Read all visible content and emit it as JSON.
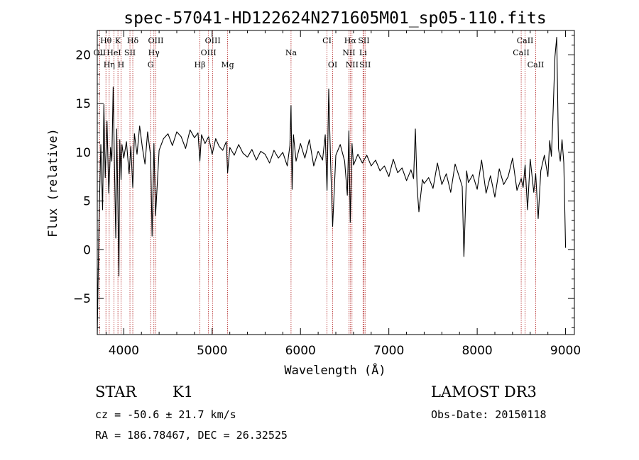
{
  "chart_data": {
    "type": "line",
    "title": "spec-57041-HD122624N271605M01_sp05-110.fits",
    "xlabel": "Wavelength (Å)",
    "ylabel": "Flux (relative)",
    "xlim": [
      3700,
      9100
    ],
    "ylim": [
      -8.7,
      22.5
    ],
    "xticks": [
      4000,
      5000,
      6000,
      7000,
      8000,
      9000
    ],
    "yticks": [
      -5,
      0,
      5,
      10,
      15,
      20
    ],
    "grid": false,
    "legend": "none",
    "spectral_lines": [
      {
        "label": "Hθ",
        "wavelength": 3798,
        "row": 0
      },
      {
        "label": "K",
        "wavelength": 3934,
        "row": 0
      },
      {
        "label": "Hδ",
        "wavelength": 4102,
        "row": 0
      },
      {
        "label": "OIII",
        "wavelength": 4363,
        "row": 0
      },
      {
        "label": "OIII",
        "wavelength": 5007,
        "row": 0
      },
      {
        "label": "CI",
        "wavelength": 6300,
        "row": 0
      },
      {
        "label": "Hα",
        "wavelength": 6563,
        "row": 0
      },
      {
        "label": "SII",
        "wavelength": 6717,
        "row": 0
      },
      {
        "label": "CaII",
        "wavelength": 8542,
        "row": 0
      },
      {
        "label": "OII",
        "wavelength": 3727,
        "row": 1
      },
      {
        "label": "HeI",
        "wavelength": 3889,
        "row": 1
      },
      {
        "label": "SII",
        "wavelength": 4070,
        "row": 1
      },
      {
        "label": "Hγ",
        "wavelength": 4341,
        "row": 1
      },
      {
        "label": "OIII",
        "wavelength": 4959,
        "row": 1
      },
      {
        "label": "Na",
        "wavelength": 5893,
        "row": 1
      },
      {
        "label": "NII",
        "wavelength": 6548,
        "row": 1
      },
      {
        "label": "Li",
        "wavelength": 6708,
        "row": 1
      },
      {
        "label": "CaII",
        "wavelength": 8498,
        "row": 1
      },
      {
        "label": "Hη",
        "wavelength": 3835,
        "row": 2
      },
      {
        "label": "H",
        "wavelength": 3969,
        "row": 2
      },
      {
        "label": "G",
        "wavelength": 4304,
        "row": 2
      },
      {
        "label": "Hβ",
        "wavelength": 4861,
        "row": 2
      },
      {
        "label": "Mg",
        "wavelength": 5175,
        "row": 2
      },
      {
        "label": "OI",
        "wavelength": 6364,
        "row": 2
      },
      {
        "label": "NII",
        "wavelength": 6583,
        "row": 2
      },
      {
        "label": "SII",
        "wavelength": 6731,
        "row": 2
      },
      {
        "label": "CaII",
        "wavelength": 8662,
        "row": 2
      }
    ],
    "series": [
      {
        "x": [
          3700,
          3720,
          3740,
          3760,
          3775,
          3790,
          3810,
          3830,
          3850,
          3865,
          3880,
          3895,
          3910,
          3920,
          3934,
          3945,
          3955,
          3969,
          3980,
          4000,
          4030,
          4060,
          4080,
          4102,
          4120,
          4150,
          4180,
          4210,
          4240,
          4270,
          4304,
          4320,
          4341,
          4360,
          4400,
          4450,
          4500,
          4550,
          4600,
          4650,
          4700,
          4750,
          4800,
          4840,
          4861,
          4880,
          4920,
          4960,
          5000,
          5040,
          5080,
          5120,
          5160,
          5175,
          5200,
          5250,
          5300,
          5350,
          5400,
          5450,
          5500,
          5550,
          5600,
          5650,
          5700,
          5750,
          5800,
          5850,
          5880,
          5893,
          5905,
          5920,
          5950,
          6000,
          6050,
          6100,
          6150,
          6200,
          6250,
          6280,
          6300,
          6320,
          6340,
          6364,
          6400,
          6450,
          6500,
          6530,
          6548,
          6563,
          6583,
          6600,
          6650,
          6700,
          6750,
          6800,
          6850,
          6900,
          6950,
          7000,
          7050,
          7100,
          7150,
          7200,
          7250,
          7280,
          7300,
          7320,
          7340,
          7380,
          7400,
          7450,
          7500,
          7550,
          7600,
          7650,
          7700,
          7750,
          7800,
          7830,
          7850,
          7880,
          7900,
          7950,
          8000,
          8050,
          8100,
          8150,
          8200,
          8250,
          8300,
          8350,
          8400,
          8450,
          8498,
          8520,
          8542,
          8570,
          8600,
          8640,
          8662,
          8690,
          8720,
          8760,
          8800,
          8820,
          8840,
          8860,
          8880,
          8900,
          8920,
          8940,
          8960,
          8980,
          9000
        ],
        "values": [
          -8.7,
          3.2,
          10.8,
          4.1,
          14.9,
          7.4,
          13.2,
          5.8,
          10.5,
          9.1,
          16.7,
          8.3,
          1.2,
          12.4,
          4.5,
          -2.7,
          11.3,
          7.2,
          10.8,
          9.4,
          11.1,
          7.8,
          10.6,
          6.4,
          11.9,
          9.8,
          12.7,
          10.5,
          8.8,
          12.1,
          9.6,
          1.4,
          10.9,
          3.5,
          10.2,
          11.4,
          11.9,
          10.7,
          12.1,
          11.6,
          10.4,
          12.3,
          11.5,
          12.0,
          9.1,
          11.8,
          10.9,
          11.6,
          9.8,
          11.4,
          10.6,
          10.2,
          11.1,
          7.9,
          10.5,
          9.7,
          10.8,
          9.9,
          9.5,
          10.3,
          9.2,
          10.1,
          9.8,
          8.9,
          10.2,
          9.4,
          10.0,
          8.6,
          10.7,
          14.8,
          6.2,
          11.8,
          9.1,
          10.9,
          9.4,
          11.3,
          8.6,
          10.1,
          9.2,
          11.8,
          6.1,
          16.5,
          9.3,
          2.4,
          9.7,
          10.8,
          9.1,
          5.6,
          12.2,
          2.8,
          10.9,
          8.7,
          9.8,
          8.9,
          9.7,
          8.6,
          9.2,
          8.1,
          8.6,
          7.5,
          9.3,
          7.9,
          8.4,
          7.1,
          8.2,
          7.3,
          12.4,
          6.4,
          3.9,
          7.2,
          6.8,
          7.4,
          6.3,
          8.9,
          6.7,
          7.8,
          5.9,
          8.8,
          7.4,
          6.5,
          -0.7,
          8.1,
          6.9,
          7.7,
          6.2,
          9.2,
          5.8,
          7.6,
          5.4,
          8.3,
          6.7,
          7.5,
          9.4,
          6.1,
          7.3,
          6.4,
          8.7,
          4.1,
          9.3,
          5.9,
          7.8,
          3.2,
          8.1,
          9.7,
          7.5,
          11.2,
          9.6,
          14.3,
          19.8,
          21.8,
          10.4,
          9.1,
          11.3,
          8.9,
          0.2
        ]
      }
    ]
  },
  "info": {
    "object_class": "STAR",
    "subclass": "K1",
    "survey": "LAMOST DR3",
    "cz": "cz = -50.6 ± 21.7 km/s",
    "obs_date": "Obs-Date: 20150118",
    "coords": "RA = 186.78467, DEC =  26.32525"
  }
}
